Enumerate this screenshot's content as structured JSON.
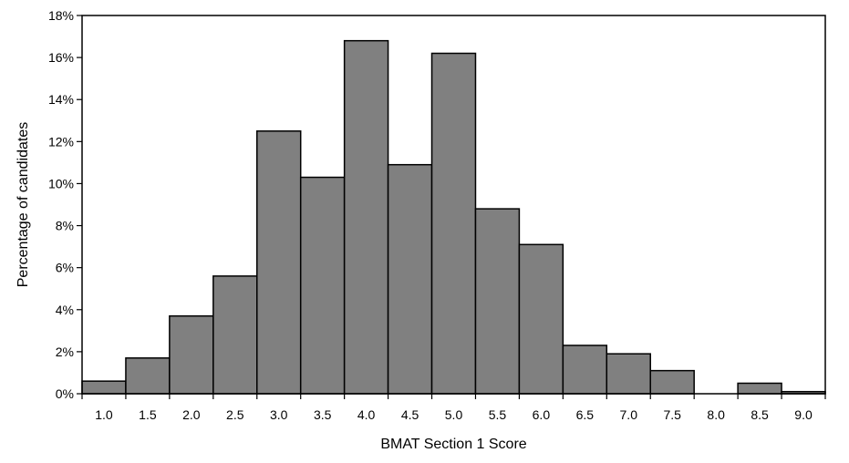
{
  "chart_data": {
    "type": "bar",
    "title": "",
    "xlabel": "BMAT Section 1 Score",
    "ylabel": "Percentage of candidates",
    "categories": [
      "1.0",
      "1.5",
      "2.0",
      "2.5",
      "3.0",
      "3.5",
      "4.0",
      "4.5",
      "5.0",
      "5.5",
      "6.0",
      "6.5",
      "7.0",
      "7.5",
      "8.0",
      "8.5",
      "9.0"
    ],
    "values": [
      0.6,
      1.7,
      3.7,
      5.6,
      12.5,
      10.3,
      16.8,
      10.9,
      16.2,
      8.8,
      7.1,
      2.3,
      1.9,
      1.1,
      0.0,
      0.5,
      0.1
    ],
    "y_ticks": [
      "0%",
      "2%",
      "4%",
      "6%",
      "8%",
      "10%",
      "12%",
      "14%",
      "16%",
      "18%"
    ],
    "ylim": [
      0,
      18
    ],
    "grid": false,
    "legend": "none",
    "colors": {
      "bar_fill": "#808080",
      "bar_stroke": "#000000",
      "axis": "#000000"
    }
  }
}
